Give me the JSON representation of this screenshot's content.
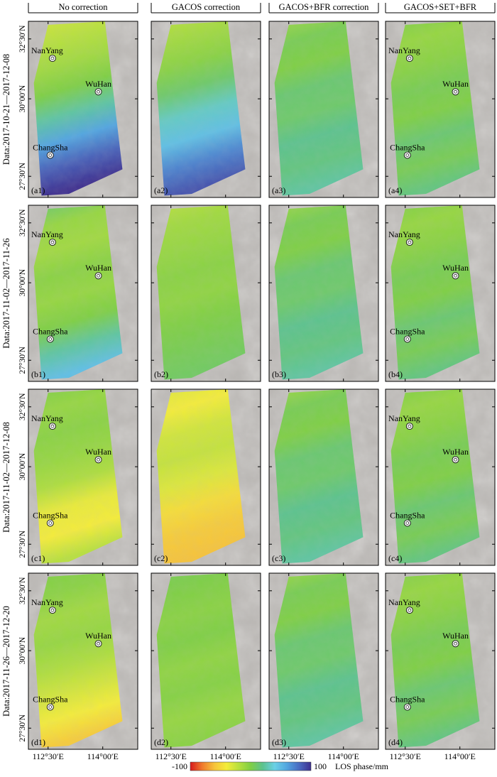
{
  "columns": [
    {
      "title": "No correction"
    },
    {
      "title": "GACOS correction"
    },
    {
      "title": "GACOS+BFR correction"
    },
    {
      "title": "GACOS+SET+BFR"
    }
  ],
  "rows": [
    {
      "date_label": "Data:2017-10-21—2017-12-08",
      "panel_labels": [
        "(a1)",
        "(a2)",
        "(a3)",
        "(a4)"
      ]
    },
    {
      "date_label": "Data:2017-11-02—2017-11-26",
      "panel_labels": [
        "(b1)",
        "(b2)",
        "(b3)",
        "(b4)"
      ]
    },
    {
      "date_label": "Data:2017-11-02—2017-12-08",
      "panel_labels": [
        "(c1)",
        "(c2)",
        "(c3)",
        "(c4)"
      ]
    },
    {
      "date_label": "Data:2017-11-26—2017-12-20",
      "panel_labels": [
        "(d1)",
        "(d2)",
        "(d3)",
        "(d4)"
      ]
    }
  ],
  "cities": [
    "NanYang",
    "WuHan",
    "ChangSha"
  ],
  "lat_ticks": [
    "32°30′N",
    "30°00′N",
    "27°30′N"
  ],
  "lon_ticks": [
    "112°30′E",
    "114°00′E"
  ],
  "colorbar": {
    "min_label": "-100",
    "max_label": "100",
    "unit_label": "LOS phase/mm",
    "colors": [
      "#d7191c",
      "#f07b2c",
      "#f6c33a",
      "#f4ec3a",
      "#b8e03e",
      "#7fcf45",
      "#5cc28e",
      "#6ad0e6",
      "#52a5e0",
      "#4a6cc2",
      "#3e2f8f"
    ]
  },
  "panel_fields": [
    [
      "no-corr-ramp",
      "gacos-blue",
      "bfr-cyan",
      "set-green"
    ],
    [
      "no-corr-mild",
      "gacos-yellow",
      "bfr-cyan",
      "set-green"
    ],
    [
      "no-corr-orange",
      "gacos-orange",
      "bfr-cyan",
      "set-green"
    ],
    [
      "no-corr-red",
      "gacos-green",
      "bfr-cyan",
      "set-green"
    ]
  ],
  "field_colors": {
    "background": "#b9b6b3",
    "strip_base": "#98d052"
  }
}
